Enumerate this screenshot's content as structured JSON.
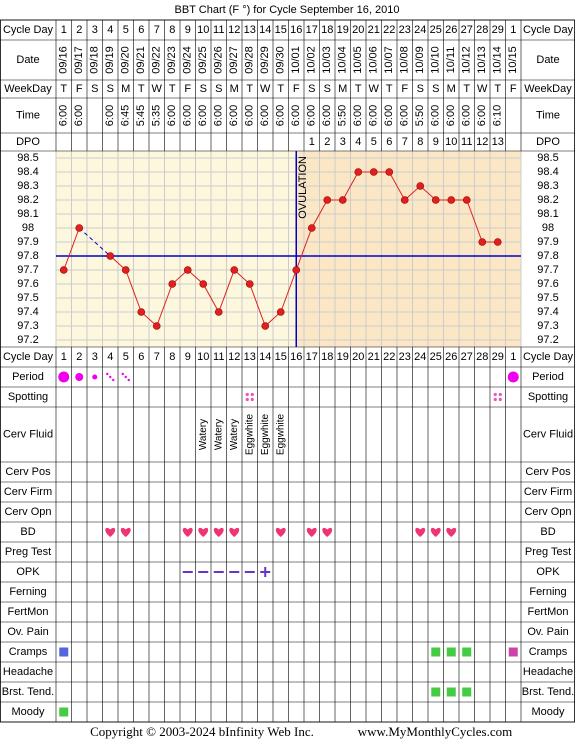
{
  "title": "BBT Chart (F °) for Cycle September 16, 2010",
  "chart_data": {
    "type": "line",
    "categories": [
      "09/16",
      "09/17",
      "09/18",
      "09/19",
      "09/20",
      "09/21",
      "09/22",
      "09/23",
      "09/24",
      "09/25",
      "09/26",
      "09/27",
      "09/28",
      "09/29",
      "09/30",
      "10/01",
      "10/02",
      "10/03",
      "10/04",
      "10/05",
      "10/06",
      "10/07",
      "10/08",
      "10/09",
      "10/10",
      "10/11",
      "10/12",
      "10/13",
      "10/14",
      "10/15"
    ],
    "series": [
      {
        "color": "#e02020",
        "values": [
          97.7,
          98.0,
          null,
          97.8,
          97.7,
          97.4,
          97.3,
          97.6,
          97.7,
          97.6,
          97.4,
          97.7,
          97.6,
          97.3,
          97.4,
          97.7,
          98.0,
          98.2,
          98.2,
          98.4,
          98.4,
          98.4,
          98.2,
          98.3,
          98.2,
          98.2,
          98.2,
          97.9,
          97.9,
          null
        ]
      }
    ],
    "ylim": [
      97.15,
      98.55
    ],
    "yticks": [
      98.5,
      98.4,
      98.3,
      98.2,
      98.1,
      98.0,
      97.9,
      97.8,
      97.7,
      97.6,
      97.5,
      97.4,
      97.3,
      97.2
    ],
    "grid": true,
    "coverline": 97.8,
    "coverline_color": "#0000cc",
    "ovulation_day": 16,
    "ovulation_label": "OVULATION"
  },
  "rows": {
    "cycle_day": {
      "label": "Cycle Day",
      "values": [
        1,
        2,
        3,
        4,
        5,
        6,
        7,
        8,
        9,
        10,
        11,
        12,
        13,
        14,
        15,
        16,
        17,
        18,
        19,
        20,
        21,
        22,
        23,
        24,
        25,
        26,
        27,
        28,
        29,
        1
      ]
    },
    "date": {
      "label": "Date"
    },
    "weekday": {
      "label": "WeekDay",
      "values": [
        "T",
        "F",
        "S",
        "S",
        "M",
        "T",
        "W",
        "T",
        "F",
        "S",
        "S",
        "M",
        "T",
        "W",
        "T",
        "F",
        "S",
        "S",
        "M",
        "T",
        "W",
        "T",
        "F",
        "S",
        "S",
        "M",
        "T",
        "W",
        "T",
        "F"
      ]
    },
    "time": {
      "label": "Time",
      "values": [
        "6:00",
        "6:00",
        null,
        "6:00",
        "6:45",
        "5:45",
        "5:35",
        "6:00",
        "6:00",
        "6:00",
        "6:00",
        "6:00",
        "6:00",
        "6:00",
        "6:00",
        "6:00",
        "6:00",
        "6:00",
        "5:50",
        "6:00",
        "6:00",
        "6:00",
        "6:00",
        "5:50",
        "6:00",
        "6:00",
        "6:00",
        "6:00",
        "6:10",
        null
      ]
    },
    "dpo": {
      "label": "DPO",
      "values": [
        null,
        null,
        null,
        null,
        null,
        null,
        null,
        null,
        null,
        null,
        null,
        null,
        null,
        null,
        null,
        null,
        1,
        2,
        3,
        4,
        5,
        6,
        7,
        8,
        9,
        10,
        11,
        12,
        13,
        null
      ]
    }
  },
  "observations": [
    {
      "label": "Period",
      "kind": "period",
      "color": "#ee00ee",
      "values": [
        3,
        2,
        1,
        0.5,
        0.5,
        null,
        null,
        null,
        null,
        null,
        null,
        null,
        null,
        null,
        null,
        null,
        null,
        null,
        null,
        null,
        null,
        null,
        null,
        null,
        null,
        null,
        null,
        null,
        null,
        3
      ]
    },
    {
      "label": "Spotting",
      "kind": "spot",
      "color": "#ee55bb",
      "values": [
        null,
        null,
        null,
        null,
        null,
        null,
        null,
        null,
        null,
        null,
        null,
        null,
        1,
        null,
        null,
        null,
        null,
        null,
        null,
        null,
        null,
        null,
        null,
        null,
        null,
        null,
        null,
        null,
        1,
        null
      ]
    },
    {
      "label": "Cerv Fluid",
      "kind": "text",
      "values": [
        null,
        null,
        null,
        null,
        null,
        null,
        null,
        null,
        null,
        "Watery",
        "Watery",
        "Watery",
        "Eggwhite",
        "Eggwhite",
        "Eggwhite",
        null,
        null,
        null,
        null,
        null,
        null,
        null,
        null,
        null,
        null,
        null,
        null,
        null,
        null,
        null
      ]
    },
    {
      "label": "Cerv Pos"
    },
    {
      "label": "Cerv Firm"
    },
    {
      "label": "Cerv Opn"
    },
    {
      "label": "BD",
      "kind": "heart",
      "color": "#ee3377",
      "values": [
        null,
        null,
        null,
        1,
        1,
        null,
        null,
        null,
        1,
        1,
        1,
        1,
        null,
        null,
        1,
        null,
        1,
        1,
        null,
        null,
        null,
        null,
        null,
        1,
        1,
        1,
        null,
        null,
        null,
        null
      ]
    },
    {
      "label": "Preg Test"
    },
    {
      "label": "OPK",
      "kind": "opk",
      "color": "#6633cc",
      "values": [
        null,
        null,
        null,
        null,
        null,
        null,
        null,
        null,
        0,
        0,
        0,
        0,
        0,
        1,
        null,
        null,
        null,
        null,
        null,
        null,
        null,
        null,
        null,
        null,
        null,
        null,
        null,
        null,
        null,
        null
      ]
    },
    {
      "label": "Ferning"
    },
    {
      "label": "FertMon"
    },
    {
      "label": "Ov. Pain"
    },
    {
      "label": "Cramps",
      "kind": "square",
      "colors": [
        "#5566dd",
        null,
        null,
        null,
        null,
        null,
        null,
        null,
        null,
        null,
        null,
        null,
        null,
        null,
        null,
        null,
        null,
        null,
        null,
        null,
        null,
        null,
        null,
        null,
        "#44cc44",
        "#44cc44",
        "#44cc44",
        null,
        null,
        "#cc44aa"
      ],
      "values": [
        1,
        null,
        null,
        null,
        null,
        null,
        null,
        null,
        null,
        null,
        null,
        null,
        null,
        null,
        null,
        null,
        null,
        null,
        null,
        null,
        null,
        null,
        null,
        null,
        1,
        1,
        1,
        null,
        null,
        1
      ]
    },
    {
      "label": "Headache"
    },
    {
      "label": "Brst. Tend.",
      "kind": "square",
      "color": "#44cc44",
      "values": [
        null,
        null,
        null,
        null,
        null,
        null,
        null,
        null,
        null,
        null,
        null,
        null,
        null,
        null,
        null,
        null,
        null,
        null,
        null,
        null,
        null,
        null,
        null,
        null,
        1,
        1,
        1,
        null,
        null,
        null
      ]
    },
    {
      "label": "Moody",
      "kind": "square",
      "color": "#44cc44",
      "values": [
        1,
        null,
        null,
        null,
        null,
        null,
        null,
        null,
        null,
        null,
        null,
        null,
        null,
        null,
        null,
        null,
        null,
        null,
        null,
        null,
        null,
        null,
        null,
        null,
        null,
        null,
        null,
        null,
        null,
        null
      ]
    }
  ],
  "footer": {
    "copyright": "Copyright © 2003-2024 bInfinity Web Inc.",
    "website": "www.MyMonthlyCycles.com"
  }
}
